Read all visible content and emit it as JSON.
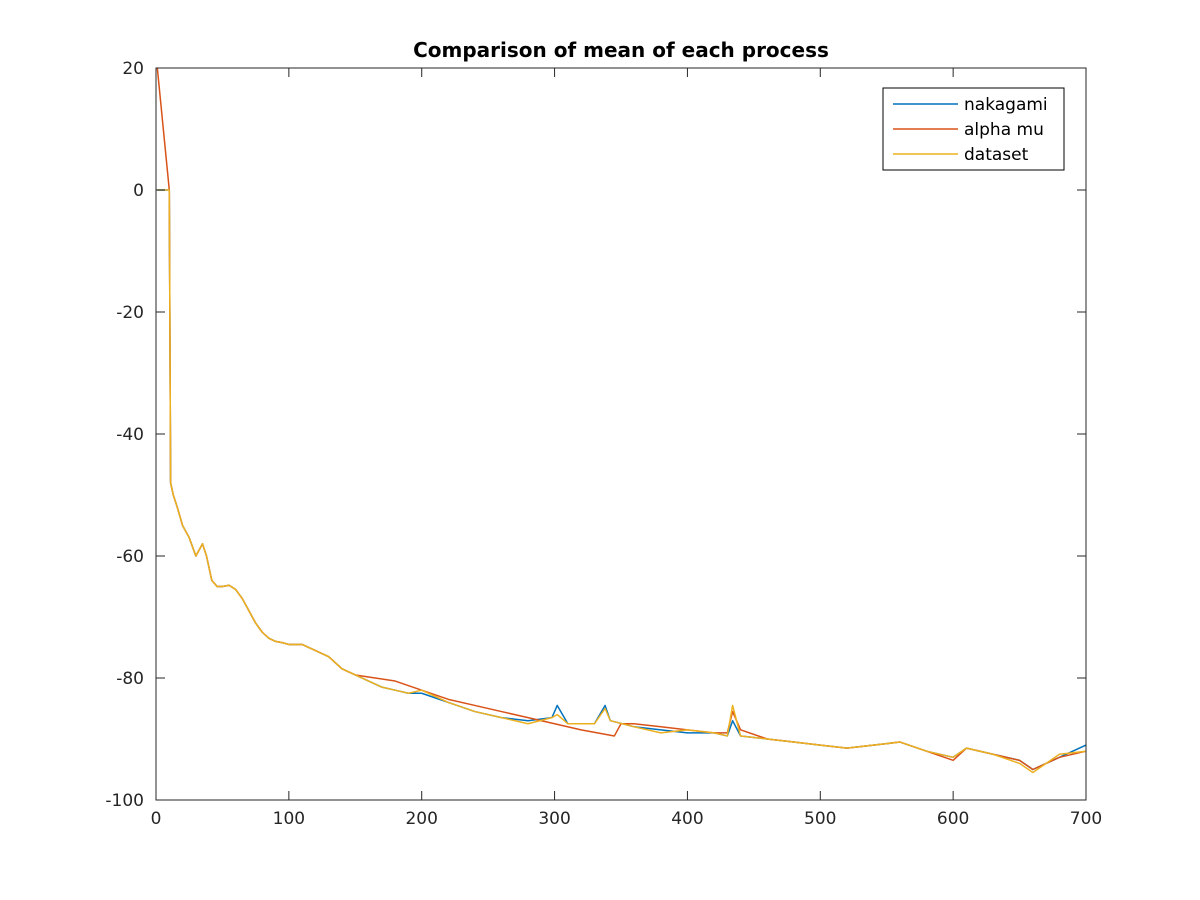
{
  "chart_data": {
    "type": "line",
    "title": "Comparison of mean of each process",
    "xlabel": "",
    "ylabel": "",
    "xlim": [
      0,
      700
    ],
    "ylim": [
      -100,
      20
    ],
    "xticks": [
      0,
      100,
      200,
      300,
      400,
      500,
      600,
      700
    ],
    "yticks": [
      -100,
      -80,
      -60,
      -40,
      -20,
      0,
      20
    ],
    "grid": false,
    "legend_position": "top-right",
    "series": [
      {
        "name": "nakagami",
        "color": "#0072BD",
        "x": [
          1,
          10,
          11,
          13,
          16,
          20,
          25,
          30,
          35,
          38,
          42,
          46,
          50,
          55,
          60,
          65,
          70,
          75,
          80,
          85,
          90,
          95,
          100,
          110,
          120,
          130,
          140,
          150,
          160,
          170,
          180,
          190,
          200,
          220,
          240,
          260,
          280,
          298,
          302,
          310,
          330,
          338,
          342,
          360,
          380,
          400,
          420,
          430,
          434,
          440,
          460,
          480,
          500,
          520,
          540,
          560,
          580,
          600,
          610,
          630,
          650,
          660,
          680,
          700
        ],
        "y": [
          0,
          0,
          -48,
          -50,
          -52,
          -55,
          -57,
          -60,
          -58,
          -60,
          -64,
          -65,
          -65,
          -64.8,
          -65.5,
          -67,
          -69,
          -71,
          -72.5,
          -73.5,
          -74,
          -74.2,
          -74.5,
          -74.5,
          -75.5,
          -76.5,
          -78.5,
          -79.5,
          -80.5,
          -81.5,
          -82,
          -82.5,
          -82.5,
          -84,
          -85.5,
          -86.5,
          -87,
          -86.5,
          -84.5,
          -87.5,
          -87.5,
          -84.5,
          -87,
          -88,
          -88.5,
          -89,
          -89,
          -89.5,
          -87,
          -89.5,
          -90,
          -90.5,
          -91,
          -91.5,
          -91,
          -90.5,
          -92,
          -93,
          -91.5,
          -92.5,
          -93.5,
          -95,
          -93,
          -91
        ]
      },
      {
        "name": "alpha mu",
        "color": "#D95319",
        "x": [
          1,
          10,
          11,
          13,
          16,
          20,
          25,
          30,
          35,
          38,
          42,
          46,
          50,
          55,
          60,
          65,
          70,
          75,
          80,
          85,
          90,
          95,
          100,
          110,
          120,
          130,
          140,
          150,
          165,
          180,
          200,
          220,
          240,
          260,
          280,
          300,
          320,
          345,
          350,
          360,
          380,
          400,
          420,
          430,
          434,
          440,
          460,
          480,
          500,
          520,
          540,
          560,
          580,
          600,
          610,
          630,
          650,
          660,
          680,
          700
        ],
        "y": [
          20,
          0,
          -48,
          -50,
          -52,
          -55,
          -57,
          -60,
          -58,
          -60,
          -64,
          -65,
          -65,
          -64.8,
          -65.5,
          -67,
          -69,
          -71,
          -72.5,
          -73.5,
          -74,
          -74.2,
          -74.5,
          -74.5,
          -75.5,
          -76.5,
          -78.5,
          -79.5,
          -80,
          -80.5,
          -82,
          -83.5,
          -84.5,
          -85.5,
          -86.5,
          -87.5,
          -88.5,
          -89.5,
          -87.5,
          -87.5,
          -88,
          -88.5,
          -89,
          -89,
          -85.5,
          -88.5,
          -90,
          -90.5,
          -91,
          -91.5,
          -91,
          -90.5,
          -92,
          -93.5,
          -91.5,
          -92.5,
          -93.5,
          -95,
          -93,
          -92
        ]
      },
      {
        "name": "dataset",
        "color": "#EDB120",
        "x": [
          1,
          10,
          11,
          13,
          16,
          20,
          25,
          30,
          35,
          38,
          42,
          46,
          50,
          55,
          60,
          65,
          70,
          75,
          80,
          85,
          90,
          95,
          100,
          110,
          120,
          130,
          140,
          150,
          160,
          170,
          180,
          190,
          200,
          220,
          240,
          260,
          280,
          298,
          302,
          310,
          330,
          338,
          342,
          360,
          380,
          400,
          420,
          430,
          434,
          440,
          460,
          480,
          500,
          520,
          540,
          560,
          580,
          600,
          610,
          630,
          650,
          660,
          680,
          700
        ],
        "y": [
          0,
          0,
          -48,
          -50,
          -52,
          -55,
          -57,
          -60,
          -58,
          -60,
          -64,
          -65,
          -65,
          -64.8,
          -65.5,
          -67,
          -69,
          -71,
          -72.5,
          -73.5,
          -74,
          -74.2,
          -74.5,
          -74.5,
          -75.5,
          -76.5,
          -78.5,
          -79.5,
          -80.5,
          -81.5,
          -82,
          -82.5,
          -82,
          -84,
          -85.5,
          -86.5,
          -87.5,
          -86.5,
          -86,
          -87.5,
          -87.5,
          -85,
          -87,
          -88,
          -89,
          -88.5,
          -89,
          -89.5,
          -84.5,
          -89.5,
          -90,
          -90.5,
          -91,
          -91.5,
          -91,
          -90.5,
          -92,
          -93,
          -91.5,
          -92.5,
          -94,
          -95.5,
          -92.5,
          -92
        ]
      }
    ]
  }
}
